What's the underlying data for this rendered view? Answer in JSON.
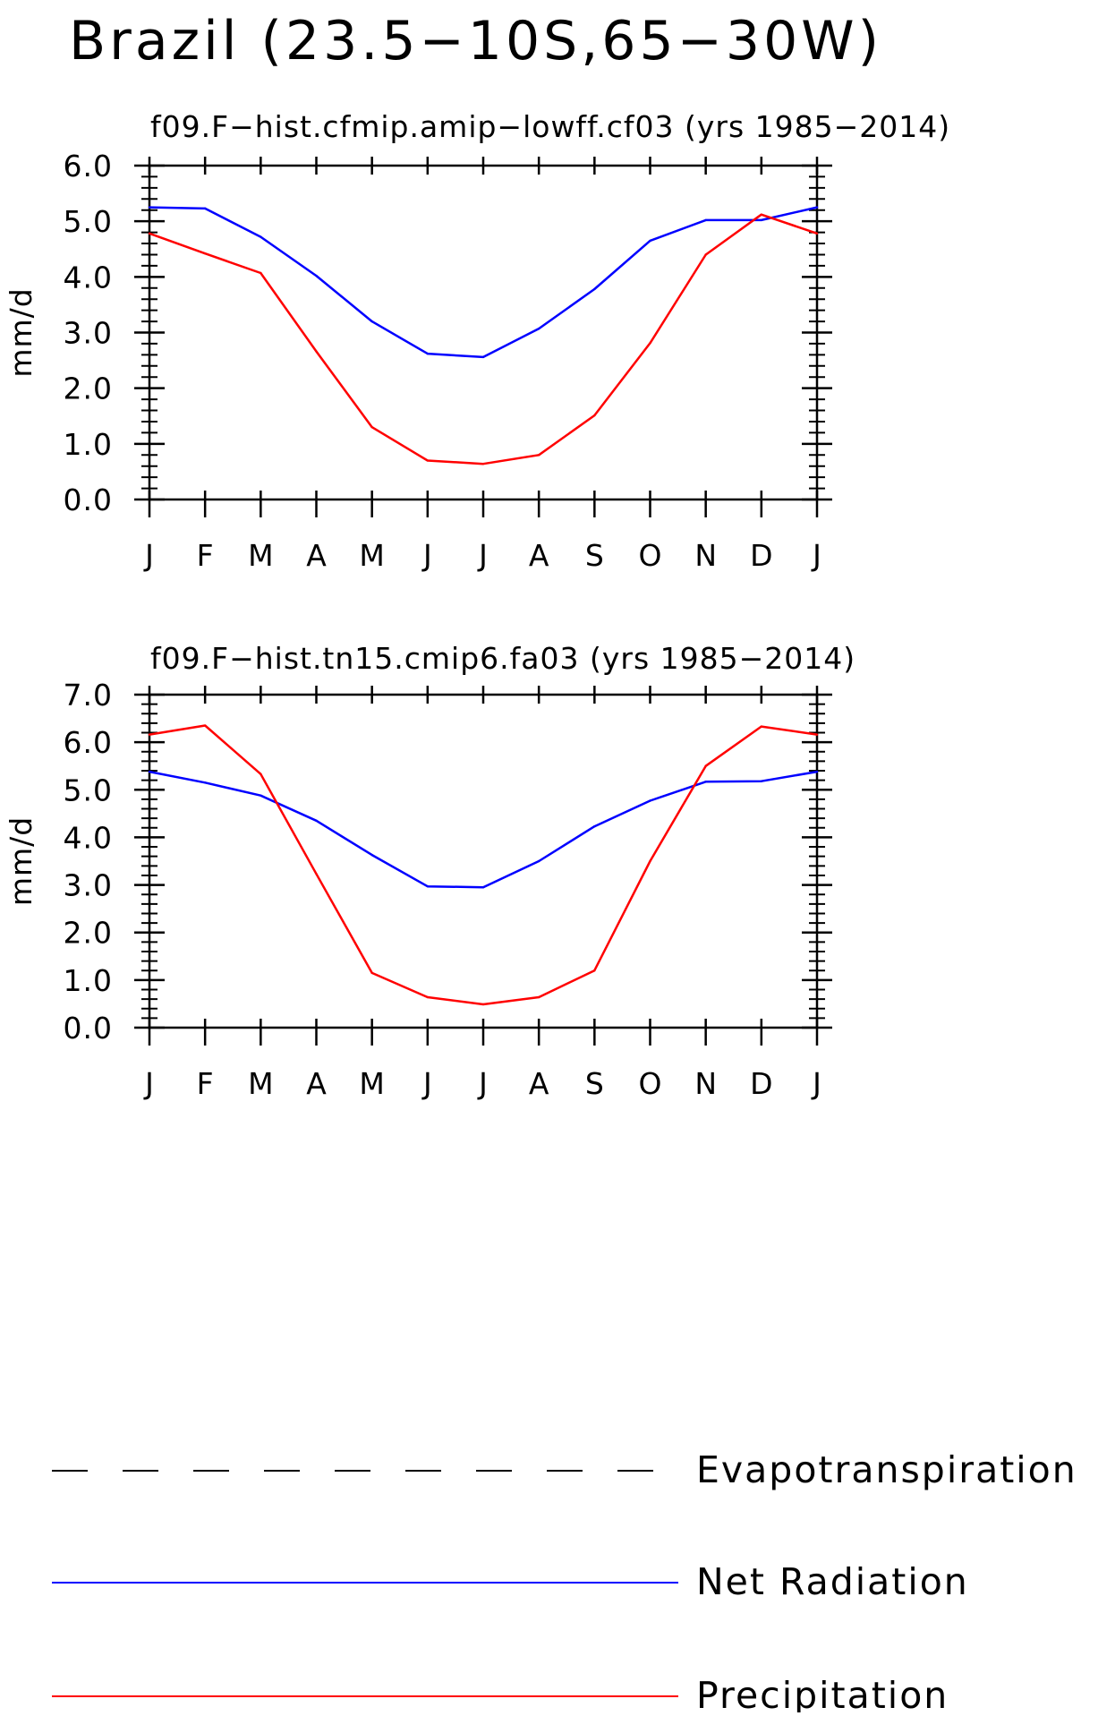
{
  "figure_title": "Brazil (23.5−10S,65−30W)",
  "legend": [
    {
      "label": "Evapotranspiration",
      "color": "#000000",
      "style": "dashed"
    },
    {
      "label": "Net Radiation",
      "color": "#0000ff",
      "style": "solid"
    },
    {
      "label": "Precipitation",
      "color": "#ff0000",
      "style": "solid"
    }
  ],
  "chart_data": [
    {
      "type": "line",
      "title": "f09.F−hist.cfmip.amip−lowff.cf03 (yrs 1985−2014)",
      "xlabel": "",
      "ylabel": "mm/d",
      "categories": [
        "J",
        "F",
        "M",
        "A",
        "M",
        "J",
        "J",
        "A",
        "S",
        "O",
        "N",
        "D",
        "J"
      ],
      "ylim": [
        0,
        6
      ],
      "yticks": [
        "0.0",
        "1.0",
        "2.0",
        "3.0",
        "4.0",
        "5.0",
        "6.0"
      ],
      "grid": false,
      "series": [
        {
          "name": "Net Radiation",
          "color": "#0000ff",
          "values": [
            5.25,
            5.23,
            4.72,
            4.02,
            3.2,
            2.62,
            2.56,
            3.07,
            3.78,
            4.65,
            5.02,
            5.02,
            5.25
          ]
        },
        {
          "name": "Precipitation",
          "color": "#ff0000",
          "values": [
            4.78,
            4.42,
            4.07,
            2.66,
            1.3,
            0.7,
            0.64,
            0.8,
            1.51,
            2.81,
            4.4,
            5.12,
            4.78
          ]
        }
      ]
    },
    {
      "type": "line",
      "title": "f09.F−hist.tn15.cmip6.fa03 (yrs 1985−2014)",
      "xlabel": "",
      "ylabel": "mm/d",
      "categories": [
        "J",
        "F",
        "M",
        "A",
        "M",
        "J",
        "J",
        "A",
        "S",
        "O",
        "N",
        "D",
        "J"
      ],
      "ylim": [
        0,
        7
      ],
      "yticks": [
        "0.0",
        "1.0",
        "2.0",
        "3.0",
        "4.0",
        "5.0",
        "6.0",
        "7.0"
      ],
      "grid": false,
      "series": [
        {
          "name": "Net Radiation",
          "color": "#0000ff",
          "values": [
            5.38,
            5.15,
            4.88,
            4.35,
            3.63,
            2.97,
            2.95,
            3.5,
            4.23,
            4.77,
            5.17,
            5.18,
            5.38
          ]
        },
        {
          "name": "Precipitation",
          "color": "#ff0000",
          "values": [
            6.16,
            6.35,
            5.33,
            3.23,
            1.15,
            0.64,
            0.49,
            0.64,
            1.2,
            3.5,
            5.5,
            6.33,
            6.16
          ]
        }
      ]
    }
  ]
}
